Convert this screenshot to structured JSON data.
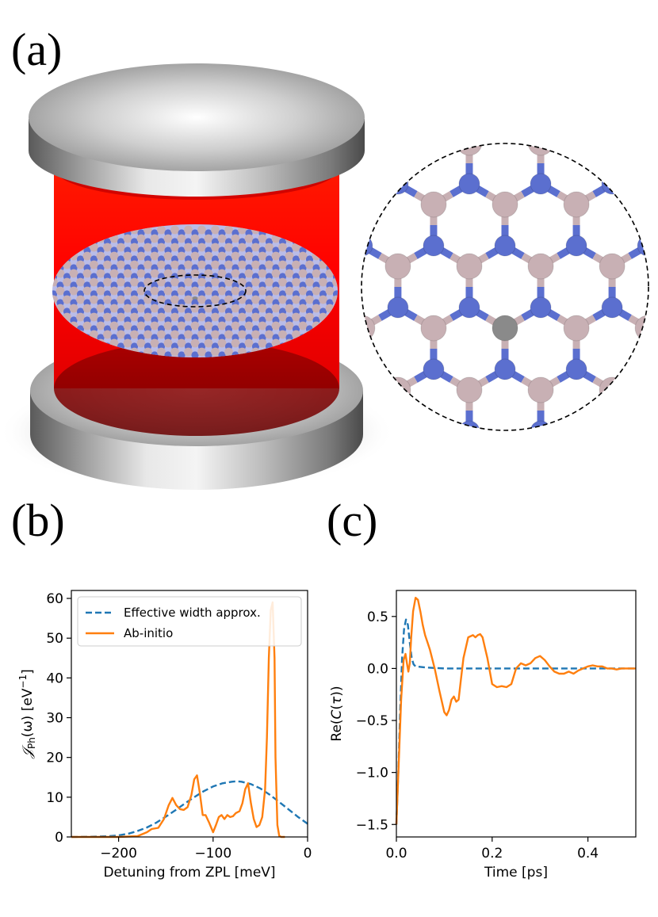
{
  "panels": {
    "a": "(a)",
    "b": "(b)",
    "c": "(c)"
  },
  "colors": {
    "series_blue": "#1f77b4",
    "series_orange": "#ff7f0e",
    "cavity_red": "#ff0000",
    "boron": "#c8b0b4",
    "nitrogen": "#5b6fcf",
    "defect": "#8a8a8a"
  },
  "chart_data": [
    {
      "type": "line",
      "panel": "b",
      "xlabel": "Detuning from ZPL [meV]",
      "ylabel": "𝒥Ph(ω) [eV−1]",
      "ylabel_parts": {
        "main": "𝒥",
        "sub": "Ph",
        "arg": "(ω) [eV",
        "sup": "−1",
        "close": "]"
      },
      "xlim": [
        -250,
        0
      ],
      "ylim": [
        0,
        62
      ],
      "xticks": [
        -200,
        -100,
        0
      ],
      "xtick_labels": [
        "−200",
        "−100",
        "0"
      ],
      "yticks": [
        0,
        10,
        20,
        30,
        40,
        50,
        60
      ],
      "ytick_labels": [
        "0",
        "10",
        "20",
        "30",
        "40",
        "50",
        "60"
      ],
      "legend": {
        "placement": "top-left",
        "entries": [
          "Effective width approx.",
          "Ab-initio"
        ]
      },
      "series": [
        {
          "name": "Effective width approx.",
          "style": "dashed",
          "color": "#1f77b4",
          "x": [
            -250,
            -230,
            -210,
            -200,
            -190,
            -180,
            -170,
            -160,
            -150,
            -140,
            -130,
            -120,
            -110,
            -100,
            -90,
            -80,
            -75,
            -70,
            -60,
            -50,
            -40,
            -30,
            -20,
            -10,
            0
          ],
          "y": [
            0,
            0.05,
            0.2,
            0.4,
            0.8,
            1.5,
            2.4,
            3.6,
            5.1,
            6.7,
            8.4,
            10.0,
            11.5,
            12.7,
            13.5,
            13.9,
            14.0,
            13.9,
            13.3,
            12.2,
            10.6,
            8.8,
            6.9,
            5.0,
            3.3
          ]
        },
        {
          "name": "Ab-initio",
          "style": "solid",
          "color": "#ff7f0e",
          "x": [
            -250,
            -200,
            -180,
            -170,
            -165,
            -158,
            -152,
            -147,
            -143,
            -139,
            -135,
            -131,
            -127,
            -123,
            -120,
            -117,
            -114,
            -111,
            -108,
            -104,
            -100,
            -97,
            -94,
            -91,
            -88,
            -85,
            -82,
            -79,
            -76,
            -72,
            -69,
            -66,
            -63,
            -60,
            -57,
            -54,
            -51,
            -48,
            -45,
            -43,
            -41,
            -39,
            -37,
            -35,
            -34,
            -32,
            -30,
            -28,
            -26,
            -24
          ],
          "y": [
            0,
            0,
            0.2,
            1.2,
            2.0,
            2.3,
            4.5,
            8.0,
            9.8,
            8.0,
            7.0,
            6.8,
            7.5,
            10.5,
            14.5,
            15.5,
            11.0,
            5.5,
            5.5,
            3.5,
            1.2,
            3.0,
            5.0,
            5.5,
            4.5,
            5.5,
            5.0,
            5.2,
            6.0,
            6.5,
            8.5,
            12.0,
            13.5,
            8.5,
            4.5,
            2.5,
            3.0,
            5.0,
            12.0,
            25.0,
            45.0,
            57.0,
            59.0,
            45.0,
            20.0,
            3.0,
            0.3,
            0,
            0,
            0
          ]
        }
      ]
    },
    {
      "type": "line",
      "panel": "c",
      "xlabel": "Time [ps]",
      "ylabel": "Re(C(τ))",
      "ylabel_parts": {
        "pre": "Re(",
        "it": "C",
        "mid": "(",
        "it2": "τ",
        "close": "))"
      },
      "xlim": [
        0,
        0.5
      ],
      "ylim": [
        -1.62,
        0.75
      ],
      "xticks": [
        0,
        0.2,
        0.4
      ],
      "xtick_labels": [
        "0.0",
        "0.2",
        "0.4"
      ],
      "yticks": [
        -1.5,
        -1.0,
        -0.5,
        0.0,
        0.5
      ],
      "ytick_labels": [
        "−1.5",
        "−1.0",
        "−0.5",
        "0.0",
        "0.5"
      ],
      "series": [
        {
          "name": "Effective width approx.",
          "style": "dashed",
          "color": "#1f77b4",
          "x": [
            0,
            0.004,
            0.008,
            0.012,
            0.016,
            0.02,
            0.024,
            0.028,
            0.032,
            0.036,
            0.04,
            0.05,
            0.06,
            0.08,
            0.1,
            0.2,
            0.3,
            0.4,
            0.5
          ],
          "y": [
            -1.5,
            -1.0,
            -0.4,
            0.1,
            0.38,
            0.47,
            0.42,
            0.25,
            0.1,
            0.04,
            0.02,
            0.015,
            0.01,
            0.005,
            0.0,
            0.0,
            0.0,
            0.0,
            0.0
          ]
        },
        {
          "name": "Ab-initio",
          "style": "solid",
          "color": "#ff7f0e",
          "x": [
            0,
            0.005,
            0.01,
            0.015,
            0.019,
            0.022,
            0.025,
            0.028,
            0.031,
            0.035,
            0.04,
            0.045,
            0.05,
            0.055,
            0.06,
            0.065,
            0.07,
            0.08,
            0.09,
            0.1,
            0.105,
            0.11,
            0.115,
            0.12,
            0.125,
            0.13,
            0.135,
            0.14,
            0.15,
            0.16,
            0.165,
            0.17,
            0.175,
            0.18,
            0.185,
            0.19,
            0.2,
            0.21,
            0.22,
            0.23,
            0.24,
            0.25,
            0.26,
            0.27,
            0.28,
            0.29,
            0.3,
            0.31,
            0.32,
            0.33,
            0.34,
            0.35,
            0.36,
            0.37,
            0.38,
            0.39,
            0.4,
            0.41,
            0.42,
            0.43,
            0.44,
            0.45,
            0.46,
            0.47,
            0.48,
            0.49,
            0.5
          ],
          "y": [
            -1.5,
            -0.9,
            -0.3,
            0.08,
            0.14,
            0.05,
            -0.03,
            0.05,
            0.3,
            0.55,
            0.68,
            0.66,
            0.55,
            0.42,
            0.32,
            0.25,
            0.18,
            0.0,
            -0.22,
            -0.42,
            -0.45,
            -0.4,
            -0.3,
            -0.27,
            -0.32,
            -0.3,
            -0.1,
            0.1,
            0.3,
            0.32,
            0.3,
            0.32,
            0.33,
            0.3,
            0.2,
            0.1,
            -0.15,
            -0.18,
            -0.17,
            -0.18,
            -0.15,
            0.0,
            0.05,
            0.03,
            0.05,
            0.1,
            0.12,
            0.08,
            0.02,
            -0.03,
            -0.05,
            -0.05,
            -0.03,
            -0.05,
            -0.02,
            0.0,
            0.02,
            0.03,
            0.02,
            0.02,
            0.0,
            0.0,
            -0.01,
            0.0,
            0.0,
            0.0,
            0.0
          ]
        }
      ]
    }
  ]
}
